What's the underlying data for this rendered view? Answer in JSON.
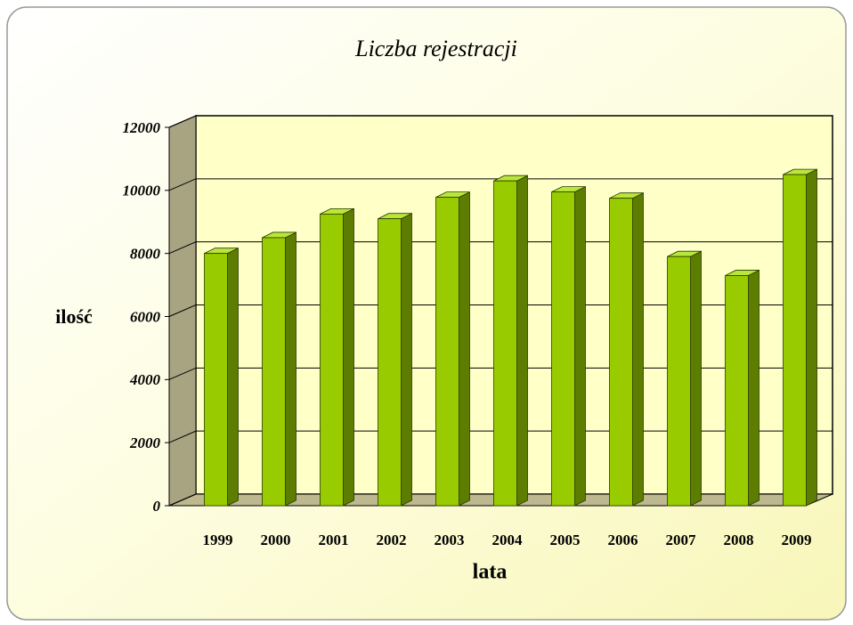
{
  "chart_data": {
    "type": "bar",
    "title": "Liczba rejestracji",
    "x_label": "lata",
    "y_label": "ilość",
    "categories": [
      "1999",
      "2000",
      "2001",
      "2002",
      "2003",
      "2004",
      "2005",
      "2006",
      "2007",
      "2008",
      "2009"
    ],
    "values": [
      8000,
      8500,
      9250,
      9100,
      9780,
      10300,
      9950,
      9750,
      7900,
      7300,
      10500
    ],
    "color": "#99cc00",
    "ylim": [
      0,
      12000
    ],
    "yticks": [
      0,
      2000,
      4000,
      6000,
      8000,
      10000,
      12000
    ],
    "grid": true
  }
}
